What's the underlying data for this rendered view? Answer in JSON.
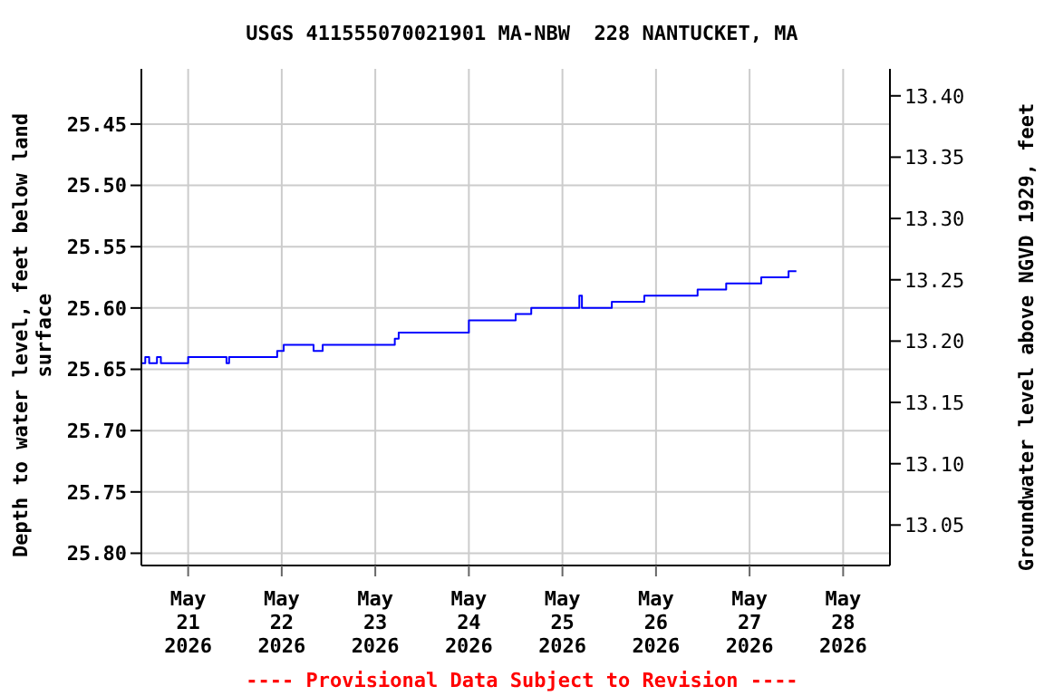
{
  "chart_data": {
    "type": "step",
    "title": "USGS 411555070021901 MA-NBW  228 NANTUCKET, MA",
    "ylabel": "Depth to water level, feet below land surface",
    "y2label": "Groundwater level above NGVD 1929, feet",
    "annotations": [
      "---- Provisional Data Subject to Revision ----"
    ],
    "x": [
      "2026-05-20T12:00",
      "2026-05-20T13:00",
      "2026-05-20T14:00",
      "2026-05-20T16:00",
      "2026-05-20T17:00",
      "2026-05-20T20:20",
      "2026-05-21T00:00",
      "2026-05-21T09:50",
      "2026-05-21T10:30",
      "2026-05-21T22:50",
      "2026-05-22T00:30",
      "2026-05-22T02:00",
      "2026-05-22T08:10",
      "2026-05-22T10:30",
      "2026-05-23T05:00",
      "2026-05-23T06:00",
      "2026-05-23T08:00",
      "2026-05-24T00:00",
      "2026-05-24T12:00",
      "2026-05-24T16:00",
      "2026-05-24T17:00",
      "2026-05-25T04:20",
      "2026-05-25T05:00",
      "2026-05-25T12:40",
      "2026-05-25T21:00",
      "2026-05-26T10:40",
      "2026-05-26T18:00",
      "2026-05-27T03:00",
      "2026-05-27T10:00",
      "2026-05-27T12:00"
    ],
    "series": [
      {
        "color": "#0000ff",
        "values": [
          25.645,
          25.64,
          25.645,
          25.64,
          25.645,
          25.645,
          25.64,
          25.645,
          25.64,
          25.635,
          25.63,
          25.63,
          25.635,
          25.63,
          25.625,
          25.62,
          25.62,
          25.61,
          25.605,
          25.6,
          25.6,
          25.59,
          25.6,
          25.595,
          25.59,
          25.585,
          25.58,
          25.575,
          25.57,
          25.57
        ]
      }
    ],
    "xlim": [
      "2026-05-20T12:00",
      "2026-05-28T12:00"
    ],
    "xticks": [
      {
        "value": "2026-05-21",
        "label": "May 21 2026"
      },
      {
        "value": "2026-05-22",
        "label": "May 22 2026"
      },
      {
        "value": "2026-05-23",
        "label": "May 23 2026"
      },
      {
        "value": "2026-05-24",
        "label": "May 24 2026"
      },
      {
        "value": "2026-05-25",
        "label": "May 25 2026"
      },
      {
        "value": "2026-05-26",
        "label": "May 26 2026"
      },
      {
        "value": "2026-05-27",
        "label": "May 27 2026"
      },
      {
        "value": "2026-05-28",
        "label": "May 28 2026"
      }
    ],
    "ylim": [
      25.81,
      25.405
    ],
    "yticks": [
      {
        "value": 25.45,
        "label": "25.45"
      },
      {
        "value": 25.5,
        "label": "25.50"
      },
      {
        "value": 25.55,
        "label": "25.55"
      },
      {
        "value": 25.6,
        "label": "25.60"
      },
      {
        "value": 25.65,
        "label": "25.65"
      },
      {
        "value": 25.7,
        "label": "25.70"
      },
      {
        "value": 25.75,
        "label": "25.75"
      },
      {
        "value": 25.8,
        "label": "25.80"
      }
    ],
    "y2lim": [
      13.017,
      13.422
    ],
    "y2ticks": [
      {
        "value": 13.05,
        "label": "13.05"
      },
      {
        "value": 13.1,
        "label": "13.10"
      },
      {
        "value": 13.15,
        "label": "13.15"
      },
      {
        "value": 13.2,
        "label": "13.20"
      },
      {
        "value": 13.25,
        "label": "13.25"
      },
      {
        "value": 13.3,
        "label": "13.30"
      },
      {
        "value": 13.35,
        "label": "13.35"
      },
      {
        "value": 13.4,
        "label": "13.40"
      }
    ],
    "grid": true,
    "legend": false,
    "marker": "none",
    "line_style": "solid"
  }
}
